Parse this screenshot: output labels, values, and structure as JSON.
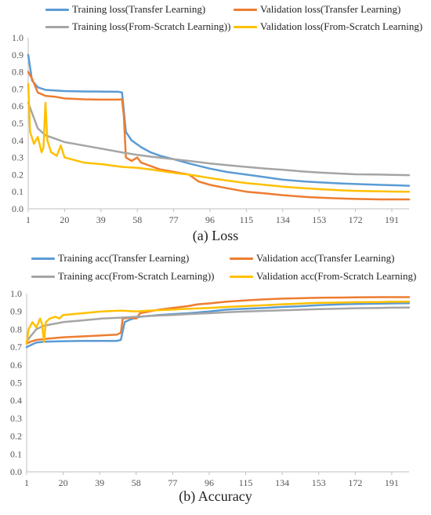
{
  "chart_data": [
    {
      "type": "line",
      "caption": "(a) Loss",
      "x_ticks": [
        1,
        20,
        39,
        58,
        77,
        96,
        115,
        134,
        153,
        172,
        191
      ],
      "y_ticks": [
        "0.0",
        "0.1",
        "0.2",
        "0.3",
        "0.4",
        "0.5",
        "0.6",
        "0.7",
        "0.8",
        "0.9",
        "1.0"
      ],
      "xlim": [
        1,
        200
      ],
      "ylim": [
        0,
        1.0
      ],
      "grid": false,
      "legend_position": "top",
      "series": [
        {
          "name": "Training loss(Transfer Learning)",
          "color": "#5b9bd5",
          "points": [
            [
              1,
              0.9
            ],
            [
              3,
              0.75
            ],
            [
              6,
              0.71
            ],
            [
              10,
              0.695
            ],
            [
              20,
              0.688
            ],
            [
              30,
              0.686
            ],
            [
              40,
              0.685
            ],
            [
              48,
              0.684
            ],
            [
              50,
              0.68
            ],
            [
              52,
              0.45
            ],
            [
              55,
              0.4
            ],
            [
              60,
              0.36
            ],
            [
              65,
              0.33
            ],
            [
              70,
              0.31
            ],
            [
              77,
              0.29
            ],
            [
              85,
              0.265
            ],
            [
              96,
              0.235
            ],
            [
              105,
              0.215
            ],
            [
              115,
              0.2
            ],
            [
              125,
              0.185
            ],
            [
              134,
              0.17
            ],
            [
              145,
              0.16
            ],
            [
              153,
              0.155
            ],
            [
              165,
              0.148
            ],
            [
              172,
              0.145
            ],
            [
              185,
              0.14
            ],
            [
              191,
              0.138
            ],
            [
              200,
              0.135
            ]
          ]
        },
        {
          "name": "Validation loss(Transfer Learning)",
          "color": "#ed7d31",
          "points": [
            [
              1,
              0.8
            ],
            [
              3,
              0.76
            ],
            [
              6,
              0.68
            ],
            [
              10,
              0.66
            ],
            [
              15,
              0.655
            ],
            [
              20,
              0.645
            ],
            [
              30,
              0.64
            ],
            [
              40,
              0.638
            ],
            [
              48,
              0.638
            ],
            [
              50,
              0.64
            ],
            [
              51,
              0.54
            ],
            [
              52,
              0.3
            ],
            [
              55,
              0.28
            ],
            [
              58,
              0.3
            ],
            [
              60,
              0.27
            ],
            [
              65,
              0.25
            ],
            [
              70,
              0.23
            ],
            [
              75,
              0.22
            ],
            [
              80,
              0.21
            ],
            [
              85,
              0.2
            ],
            [
              90,
              0.16
            ],
            [
              96,
              0.14
            ],
            [
              105,
              0.12
            ],
            [
              115,
              0.1
            ],
            [
              125,
              0.09
            ],
            [
              134,
              0.08
            ],
            [
              145,
              0.07
            ],
            [
              153,
              0.065
            ],
            [
              165,
              0.06
            ],
            [
              172,
              0.058
            ],
            [
              185,
              0.055
            ],
            [
              191,
              0.055
            ],
            [
              200,
              0.055
            ]
          ]
        },
        {
          "name": "Training loss(From-Scratch Learning))",
          "color": "#a5a5a5",
          "points": [
            [
              1,
              0.62
            ],
            [
              3,
              0.56
            ],
            [
              6,
              0.47
            ],
            [
              10,
              0.43
            ],
            [
              15,
              0.41
            ],
            [
              20,
              0.39
            ],
            [
              30,
              0.37
            ],
            [
              40,
              0.35
            ],
            [
              50,
              0.33
            ],
            [
              58,
              0.315
            ],
            [
              65,
              0.305
            ],
            [
              77,
              0.29
            ],
            [
              85,
              0.28
            ],
            [
              96,
              0.265
            ],
            [
              105,
              0.255
            ],
            [
              115,
              0.245
            ],
            [
              125,
              0.235
            ],
            [
              134,
              0.228
            ],
            [
              145,
              0.218
            ],
            [
              153,
              0.212
            ],
            [
              165,
              0.205
            ],
            [
              172,
              0.202
            ],
            [
              185,
              0.2
            ],
            [
              191,
              0.198
            ],
            [
              200,
              0.197
            ]
          ]
        },
        {
          "name": "Validation loss(From-Scratch Learning)",
          "color": "#ffc000",
          "points": [
            [
              1,
              0.73
            ],
            [
              2,
              0.45
            ],
            [
              4,
              0.38
            ],
            [
              6,
              0.42
            ],
            [
              8,
              0.33
            ],
            [
              9,
              0.36
            ],
            [
              10,
              0.62
            ],
            [
              11,
              0.4
            ],
            [
              13,
              0.33
            ],
            [
              16,
              0.31
            ],
            [
              18,
              0.37
            ],
            [
              20,
              0.3
            ],
            [
              30,
              0.27
            ],
            [
              40,
              0.26
            ],
            [
              50,
              0.245
            ],
            [
              58,
              0.24
            ],
            [
              65,
              0.23
            ],
            [
              77,
              0.21
            ],
            [
              85,
              0.2
            ],
            [
              96,
              0.18
            ],
            [
              105,
              0.165
            ],
            [
              115,
              0.15
            ],
            [
              125,
              0.14
            ],
            [
              134,
              0.13
            ],
            [
              145,
              0.12
            ],
            [
              153,
              0.115
            ],
            [
              165,
              0.108
            ],
            [
              172,
              0.105
            ],
            [
              185,
              0.102
            ],
            [
              191,
              0.101
            ],
            [
              200,
              0.1
            ]
          ]
        }
      ]
    },
    {
      "type": "line",
      "caption": "(b) Accuracy",
      "x_ticks": [
        1,
        20,
        39,
        58,
        77,
        96,
        115,
        134,
        153,
        172,
        191
      ],
      "y_ticks": [
        "0.0",
        "0.1",
        "0.2",
        "0.3",
        "0.4",
        "0.5",
        "0.6",
        "0.7",
        "0.8",
        "0.9",
        "1.0"
      ],
      "xlim": [
        1,
        200
      ],
      "ylim": [
        0,
        1.0
      ],
      "grid": false,
      "legend_position": "top",
      "series": [
        {
          "name": "Training acc(Transfer Learning)",
          "color": "#5b9bd5",
          "points": [
            [
              1,
              0.7
            ],
            [
              3,
              0.71
            ],
            [
              6,
              0.725
            ],
            [
              10,
              0.73
            ],
            [
              20,
              0.733
            ],
            [
              30,
              0.735
            ],
            [
              40,
              0.735
            ],
            [
              48,
              0.735
            ],
            [
              50,
              0.74
            ],
            [
              52,
              0.84
            ],
            [
              55,
              0.855
            ],
            [
              60,
              0.87
            ],
            [
              65,
              0.875
            ],
            [
              70,
              0.88
            ],
            [
              77,
              0.885
            ],
            [
              85,
              0.89
            ],
            [
              96,
              0.9
            ],
            [
              105,
              0.91
            ],
            [
              115,
              0.915
            ],
            [
              125,
              0.92
            ],
            [
              134,
              0.925
            ],
            [
              145,
              0.93
            ],
            [
              153,
              0.935
            ],
            [
              165,
              0.94
            ],
            [
              172,
              0.942
            ],
            [
              185,
              0.944
            ],
            [
              191,
              0.945
            ],
            [
              200,
              0.946
            ]
          ]
        },
        {
          "name": "Validation acc(Transfer Learning)",
          "color": "#ed7d31",
          "points": [
            [
              1,
              0.72
            ],
            [
              3,
              0.73
            ],
            [
              6,
              0.74
            ],
            [
              10,
              0.745
            ],
            [
              15,
              0.75
            ],
            [
              20,
              0.755
            ],
            [
              30,
              0.76
            ],
            [
              40,
              0.765
            ],
            [
              48,
              0.77
            ],
            [
              50,
              0.78
            ],
            [
              51,
              0.86
            ],
            [
              55,
              0.865
            ],
            [
              58,
              0.86
            ],
            [
              60,
              0.89
            ],
            [
              65,
              0.9
            ],
            [
              70,
              0.91
            ],
            [
              77,
              0.92
            ],
            [
              85,
              0.93
            ],
            [
              90,
              0.94
            ],
            [
              96,
              0.945
            ],
            [
              105,
              0.955
            ],
            [
              115,
              0.962
            ],
            [
              125,
              0.968
            ],
            [
              134,
              0.972
            ],
            [
              145,
              0.975
            ],
            [
              153,
              0.977
            ],
            [
              165,
              0.978
            ],
            [
              172,
              0.979
            ],
            [
              185,
              0.98
            ],
            [
              191,
              0.98
            ],
            [
              200,
              0.98
            ]
          ]
        },
        {
          "name": "Training acc(From-Scratch Learning))",
          "color": "#a5a5a5",
          "points": [
            [
              1,
              0.73
            ],
            [
              3,
              0.76
            ],
            [
              6,
              0.8
            ],
            [
              10,
              0.82
            ],
            [
              15,
              0.83
            ],
            [
              20,
              0.84
            ],
            [
              30,
              0.85
            ],
            [
              40,
              0.86
            ],
            [
              50,
              0.865
            ],
            [
              58,
              0.87
            ],
            [
              65,
              0.875
            ],
            [
              77,
              0.88
            ],
            [
              85,
              0.885
            ],
            [
              96,
              0.89
            ],
            [
              105,
              0.895
            ],
            [
              115,
              0.9
            ],
            [
              125,
              0.903
            ],
            [
              134,
              0.906
            ],
            [
              145,
              0.91
            ],
            [
              153,
              0.913
            ],
            [
              165,
              0.916
            ],
            [
              172,
              0.918
            ],
            [
              185,
              0.92
            ],
            [
              191,
              0.921
            ],
            [
              200,
              0.922
            ]
          ]
        },
        {
          "name": "Validation acc(From-Scratch Learning)",
          "color": "#ffc000",
          "points": [
            [
              1,
              0.72
            ],
            [
              2,
              0.8
            ],
            [
              4,
              0.84
            ],
            [
              6,
              0.81
            ],
            [
              8,
              0.86
            ],
            [
              9,
              0.83
            ],
            [
              10,
              0.73
            ],
            [
              11,
              0.84
            ],
            [
              13,
              0.86
            ],
            [
              16,
              0.87
            ],
            [
              18,
              0.86
            ],
            [
              20,
              0.88
            ],
            [
              30,
              0.89
            ],
            [
              40,
              0.9
            ],
            [
              50,
              0.905
            ],
            [
              58,
              0.9
            ],
            [
              65,
              0.905
            ],
            [
              77,
              0.91
            ],
            [
              85,
              0.915
            ],
            [
              96,
              0.92
            ],
            [
              105,
              0.925
            ],
            [
              115,
              0.93
            ],
            [
              125,
              0.935
            ],
            [
              134,
              0.94
            ],
            [
              145,
              0.945
            ],
            [
              153,
              0.948
            ],
            [
              165,
              0.95
            ],
            [
              172,
              0.952
            ],
            [
              185,
              0.953
            ],
            [
              191,
              0.954
            ],
            [
              200,
              0.955
            ]
          ]
        }
      ]
    }
  ]
}
